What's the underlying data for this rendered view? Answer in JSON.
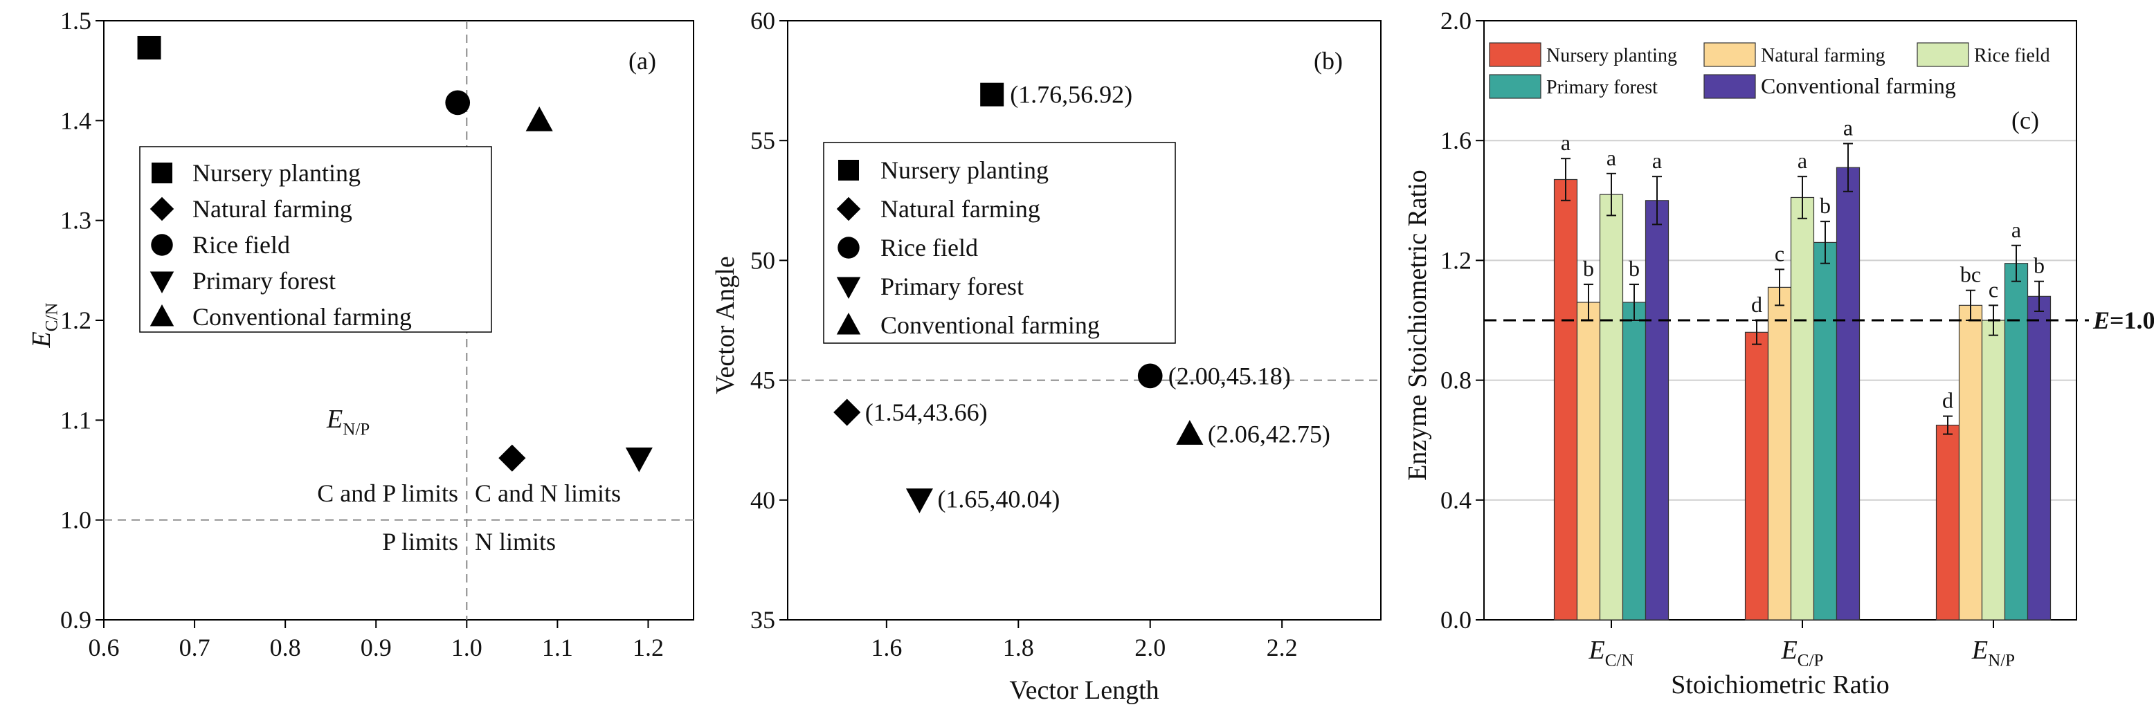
{
  "chart_data": [
    {
      "type": "scatter",
      "panel_label": "(a)",
      "xlabel": "E",
      "xlabel_sub": "N/P",
      "ylabel": "E",
      "ylabel_sub": "C/N",
      "xlim": [
        0.6,
        1.25
      ],
      "ylim": [
        0.9,
        1.5
      ],
      "xticks": [
        "0.6",
        "0.7",
        "0.8",
        "0.9",
        "1.0",
        "1.1",
        "1.2"
      ],
      "yticks": [
        "0.9",
        "1.0",
        "1.1",
        "1.2",
        "1.3",
        "1.4",
        "1.5"
      ],
      "reference_lines": {
        "x": 1.0,
        "y": 1.0
      },
      "quadrant_labels": {
        "upper_left": "C and P limits",
        "upper_right": "C and N limits",
        "lower_left": "P limits",
        "lower_right": "N limits"
      },
      "legend": [
        "Nursery planting",
        "Natural farming",
        "Rice field",
        "Primary forest",
        "Conventional farming"
      ],
      "points": [
        {
          "name": "Nursery planting",
          "marker": "square",
          "x": 0.65,
          "y": 1.473
        },
        {
          "name": "Natural farming",
          "marker": "diamond",
          "x": 1.05,
          "y": 1.062
        },
        {
          "name": "Rice field",
          "marker": "circle",
          "x": 0.99,
          "y": 1.418
        },
        {
          "name": "Primary forest",
          "marker": "triangle-down",
          "x": 1.19,
          "y": 1.062
        },
        {
          "name": "Conventional farming",
          "marker": "triangle-up",
          "x": 1.08,
          "y": 1.4
        }
      ]
    },
    {
      "type": "scatter",
      "panel_label": "(b)",
      "xlabel": "Vector Length",
      "ylabel": "Vector Angle",
      "xlim": [
        1.45,
        2.35
      ],
      "ylim": [
        35,
        60
      ],
      "xticks": [
        "1.6",
        "1.8",
        "2.0",
        "2.2"
      ],
      "yticks": [
        "35",
        "40",
        "45",
        "50",
        "55",
        "60"
      ],
      "reference_lines": {
        "y": 45
      },
      "legend": [
        "Nursery planting",
        "Natural farming",
        "Rice field",
        "Primary forest",
        "Conventional farming"
      ],
      "points": [
        {
          "name": "Nursery planting",
          "marker": "square",
          "x": 1.76,
          "y": 56.92,
          "label": "(1.76,56.92)"
        },
        {
          "name": "Natural farming",
          "marker": "diamond",
          "x": 1.54,
          "y": 43.66,
          "label": "(1.54,43.66)"
        },
        {
          "name": "Rice field",
          "marker": "circle",
          "x": 2.0,
          "y": 45.18,
          "label": "(2.00,45.18)"
        },
        {
          "name": "Primary forest",
          "marker": "triangle-down",
          "x": 1.65,
          "y": 40.04,
          "label": "(1.65,40.04)"
        },
        {
          "name": "Conventional farming",
          "marker": "triangle-up",
          "x": 2.06,
          "y": 42.75,
          "label": "(2.06,42.75)"
        }
      ]
    },
    {
      "type": "bar",
      "panel_label": "(c)",
      "xlabel": "Stoichiometric Ratio",
      "ylabel": "Enzyme Stoichiometric Ratio",
      "ylim": [
        0,
        2.0
      ],
      "yticks": [
        "0.0",
        "0.4",
        "0.8",
        "1.2",
        "1.6",
        "2.0"
      ],
      "categories": [
        {
          "main": "E",
          "sub": "C/N"
        },
        {
          "main": "E",
          "sub": "C/P"
        },
        {
          "main": "E",
          "sub": "N/P"
        }
      ],
      "reference_line": {
        "value": 1.0,
        "label_main": "E",
        "label_rest": "=1.0"
      },
      "series": [
        {
          "name": "Nursery  planting",
          "color": "#e8533d",
          "values": [
            1.47,
            0.96,
            0.65
          ],
          "errors": [
            0.07,
            0.04,
            0.03
          ],
          "letters": [
            "a",
            "d",
            "d"
          ]
        },
        {
          "name": "Natural farming",
          "color": "#fbd794",
          "values": [
            1.06,
            1.11,
            1.05
          ],
          "errors": [
            0.06,
            0.06,
            0.05
          ],
          "letters": [
            "b",
            "c",
            "bc"
          ]
        },
        {
          "name": "Rice field",
          "color": "#d6eab3",
          "values": [
            1.42,
            1.41,
            1.0
          ],
          "errors": [
            0.07,
            0.07,
            0.05
          ],
          "letters": [
            "a",
            "a",
            "c"
          ]
        },
        {
          "name": "Primary forest",
          "color": "#3aa69b",
          "values": [
            1.06,
            1.26,
            1.19
          ],
          "errors": [
            0.06,
            0.07,
            0.06
          ],
          "letters": [
            "b",
            "b",
            "a"
          ]
        },
        {
          "name": "Conventional farming",
          "color": "#5340a0",
          "values": [
            1.4,
            1.51,
            1.08
          ],
          "errors": [
            0.08,
            0.08,
            0.05
          ],
          "letters": [
            "a",
            "a",
            "b"
          ]
        }
      ]
    }
  ]
}
